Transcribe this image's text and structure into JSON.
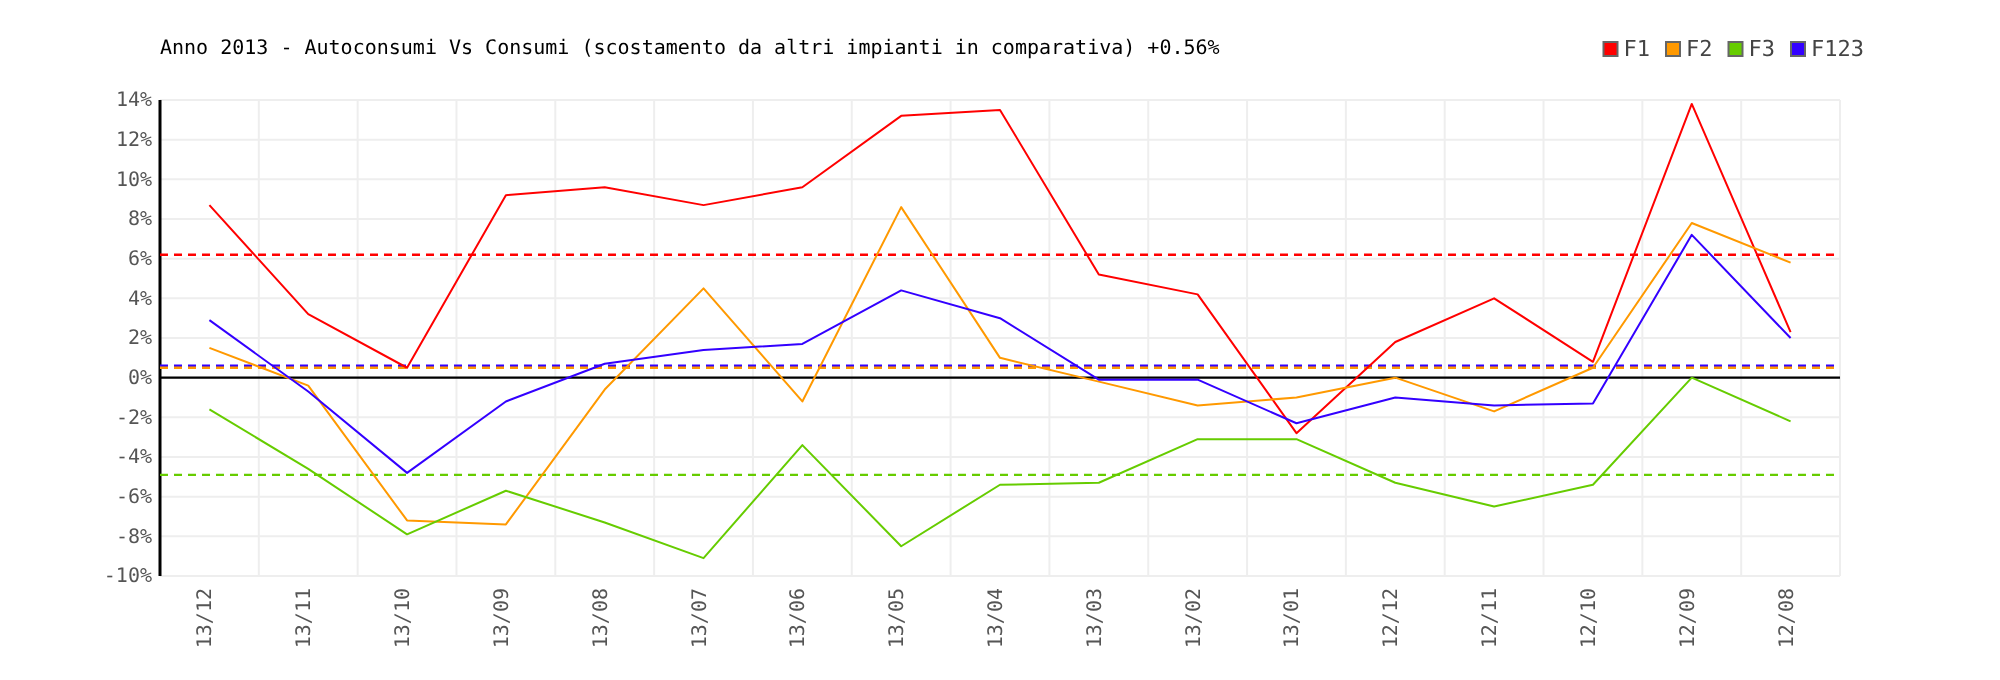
{
  "chart_data": {
    "type": "line",
    "title": "Anno 2013 - Autoconsumi Vs Consumi (scostamento da altri impianti in comparativa) +0.56%",
    "categories": [
      "13/12",
      "13/11",
      "13/10",
      "13/09",
      "13/08",
      "13/07",
      "13/06",
      "13/05",
      "13/04",
      "13/03",
      "13/02",
      "13/01",
      "12/12",
      "12/11",
      "12/10",
      "12/09",
      "12/08"
    ],
    "series": [
      {
        "name": "F1",
        "color": "#ff0000",
        "values": [
          8.7,
          3.2,
          0.5,
          9.2,
          9.6,
          8.7,
          9.6,
          13.2,
          13.5,
          5.2,
          4.2,
          -2.8,
          1.8,
          4.0,
          0.8,
          13.8,
          2.3
        ]
      },
      {
        "name": "F2",
        "color": "#ff9900",
        "values": [
          1.5,
          -0.4,
          -7.2,
          -7.4,
          -0.6,
          4.5,
          -1.2,
          8.6,
          1.0,
          -0.2,
          -1.4,
          -1.0,
          0.0,
          -1.7,
          0.5,
          7.8,
          5.8
        ]
      },
      {
        "name": "F3",
        "color": "#66cc00",
        "values": [
          -1.6,
          -4.6,
          -7.9,
          -5.7,
          -7.3,
          -9.1,
          -3.4,
          -8.5,
          -5.4,
          -5.3,
          -3.1,
          -3.1,
          -5.3,
          -6.5,
          -5.4,
          0.0,
          -2.2
        ]
      },
      {
        "name": "F123",
        "color": "#3300ff",
        "values": [
          2.9,
          -0.7,
          -4.8,
          -1.2,
          0.7,
          1.4,
          1.7,
          4.4,
          3.0,
          -0.1,
          -0.1,
          -2.3,
          -1.0,
          -1.4,
          -1.3,
          7.2,
          2.0
        ]
      }
    ],
    "ylim": [
      -10,
      14
    ],
    "yticks": [
      {
        "value": -10,
        "label": "-10%"
      },
      {
        "value": -8,
        "label": "-8%"
      },
      {
        "value": -6,
        "label": "-6%"
      },
      {
        "value": -4,
        "label": "-4%"
      },
      {
        "value": -2,
        "label": "-2%"
      },
      {
        "value": 0,
        "label": "0%"
      },
      {
        "value": 2,
        "label": "2%"
      },
      {
        "value": 4,
        "label": "4%"
      },
      {
        "value": 6,
        "label": "6%"
      },
      {
        "value": 8,
        "label": "8%"
      },
      {
        "value": 10,
        "label": "10%"
      },
      {
        "value": 12,
        "label": "12%"
      },
      {
        "value": 14,
        "label": "14%"
      }
    ],
    "ref_lines": [
      {
        "axis": "y",
        "value": 6.2,
        "color": "#ff0000",
        "line_style": "dashed"
      },
      {
        "axis": "y",
        "value": 0.6,
        "color": "#3300ff",
        "line_style": "dashed"
      },
      {
        "axis": "y",
        "value": 0.5,
        "color": "#ff9900",
        "line_style": "dashed"
      },
      {
        "axis": "y",
        "value": -4.9,
        "color": "#66cc00",
        "line_style": "dashed"
      },
      {
        "axis": "y",
        "value": 0,
        "color": "#000000",
        "line_style": "solid"
      }
    ],
    "grid": true,
    "legend": "top right",
    "marker": "none",
    "line_style": "solid"
  }
}
